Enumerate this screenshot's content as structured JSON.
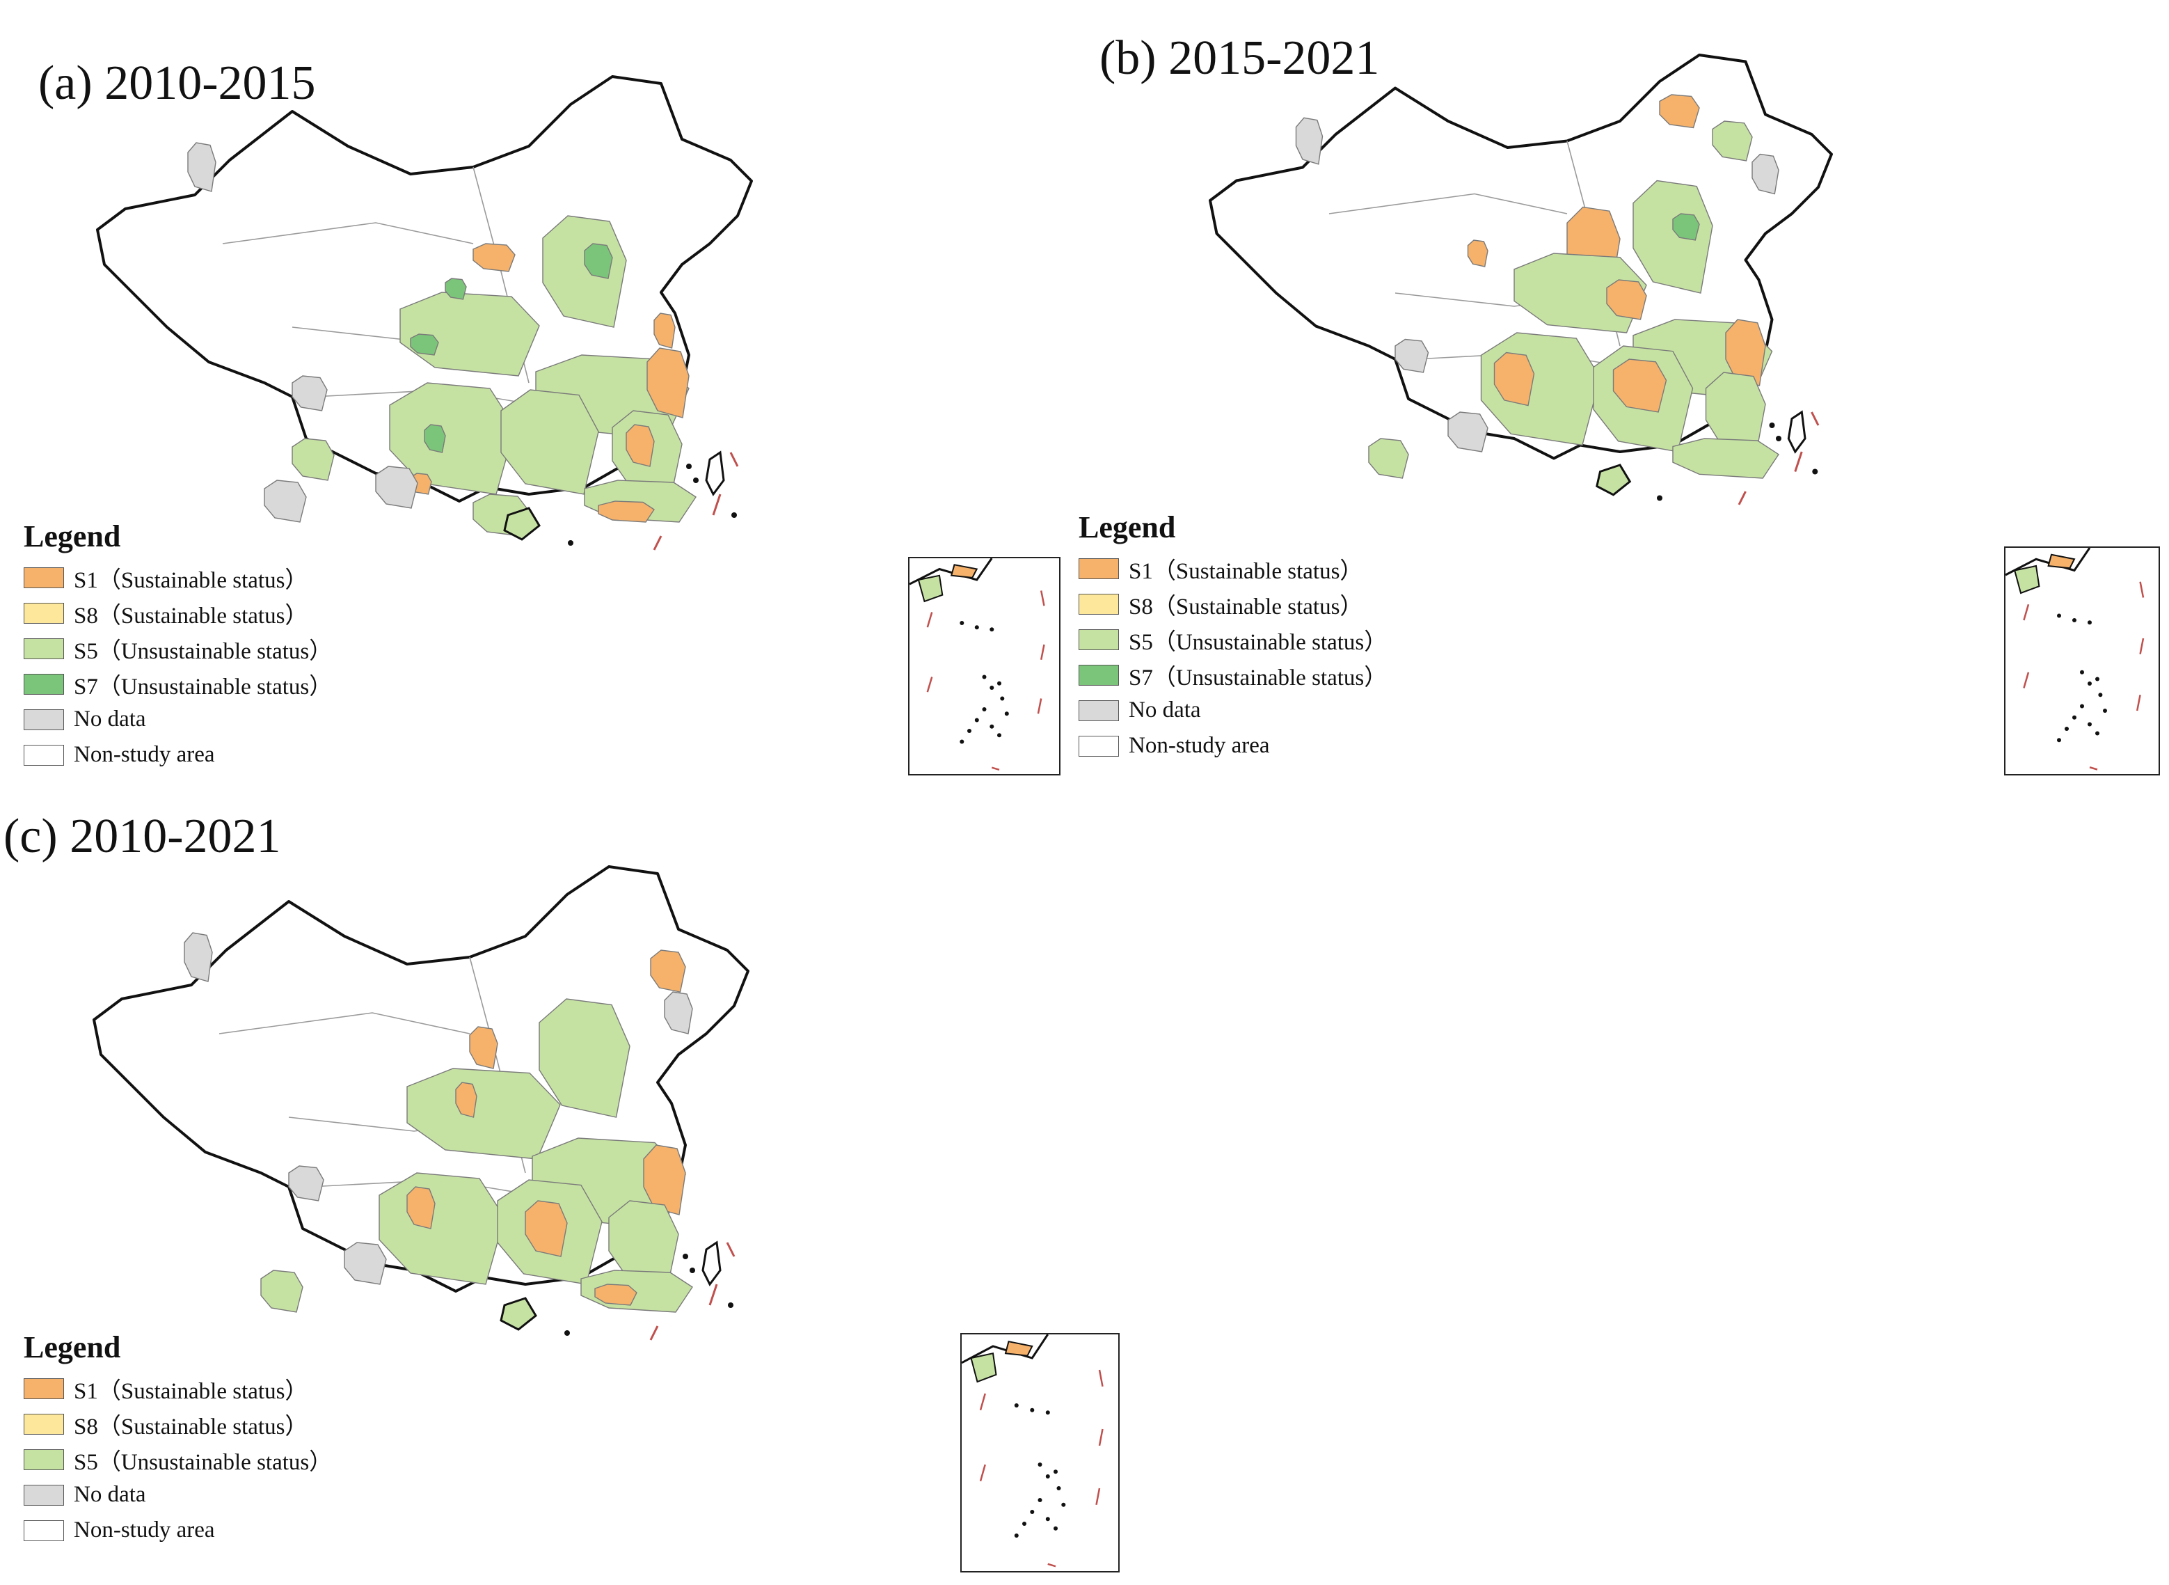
{
  "categories": {
    "S1": {
      "color": "#F6B26B"
    },
    "S8": {
      "color": "#FCE79A"
    },
    "S5": {
      "color": "#C6E2A3"
    },
    "S7": {
      "color": "#7BC57B"
    },
    "nodata": {
      "color": "#D9D9D9"
    },
    "nonstudy": {
      "color": "#FFFFFF"
    }
  },
  "panels": [
    {
      "id": "a",
      "title": "(a) 2010-2015",
      "legend": {
        "heading": "Legend",
        "items": [
          {
            "key": "S1",
            "label": "S1（Sustainable status）"
          },
          {
            "key": "S8",
            "label": "S8（Sustainable status）"
          },
          {
            "key": "S5",
            "label": "S5（Unsustainable status）"
          },
          {
            "key": "S7",
            "label": "S7（Unsustainable status）"
          },
          {
            "key": "nodata",
            "label": "No data"
          },
          {
            "key": "nonstudy",
            "label": "Non-study area"
          }
        ]
      }
    },
    {
      "id": "b",
      "title": "(b) 2015-2021",
      "legend": {
        "heading": "Legend",
        "items": [
          {
            "key": "S1",
            "label": "S1（Sustainable status）"
          },
          {
            "key": "S8",
            "label": "S8（Sustainable status）"
          },
          {
            "key": "S5",
            "label": "S5（Unsustainable status）"
          },
          {
            "key": "S7",
            "label": "S7（Unsustainable status）"
          },
          {
            "key": "nodata",
            "label": "No data"
          },
          {
            "key": "nonstudy",
            "label": "Non-study area"
          }
        ]
      }
    },
    {
      "id": "c",
      "title": "(c) 2010-2021",
      "legend": {
        "heading": "Legend",
        "items": [
          {
            "key": "S1",
            "label": "S1（Sustainable status）"
          },
          {
            "key": "S8",
            "label": "S8（Sustainable status）"
          },
          {
            "key": "S5",
            "label": "S5（Unsustainable status）"
          },
          {
            "key": "nodata",
            "label": "No data"
          },
          {
            "key": "nonstudy",
            "label": "Non-study area"
          }
        ]
      }
    }
  ]
}
